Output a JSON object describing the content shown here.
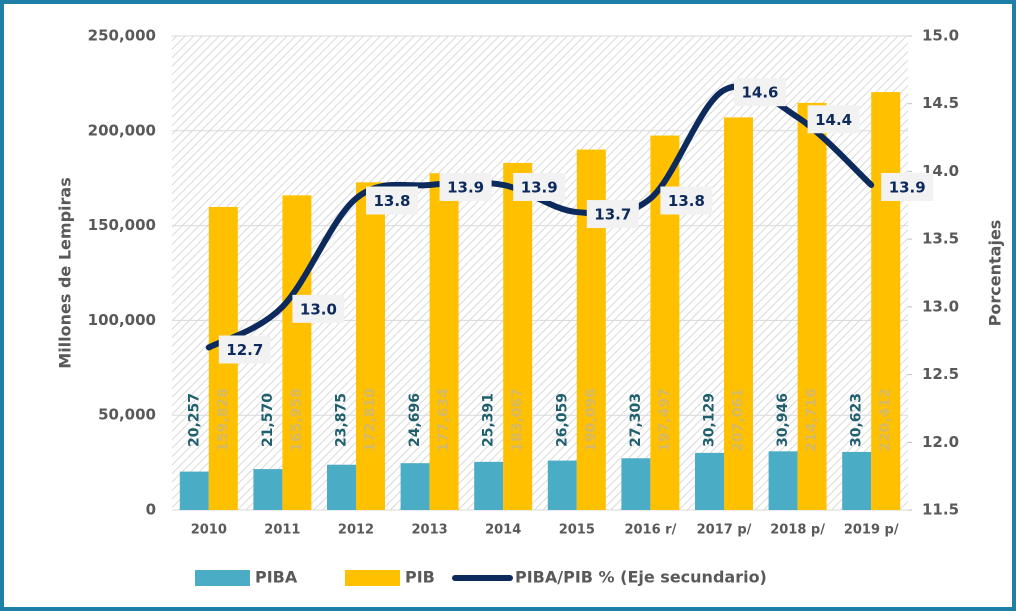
{
  "chart_data": {
    "type": "bar",
    "categories": [
      "2010",
      "2011",
      "2012",
      "2013",
      "2014",
      "2015",
      "2016 r/",
      "2017 p/",
      "2018 p/",
      "2019 p/"
    ],
    "series": [
      {
        "name": "PIBA",
        "color": "#4bacc6",
        "values": [
          20257,
          21570,
          23875,
          24696,
          25391,
          26059,
          27303,
          30129,
          30946,
          30623
        ],
        "value_labels": [
          "20,257",
          "21,570",
          "23,875",
          "24,696",
          "25,391",
          "26,059",
          "27,303",
          "30,129",
          "30,946",
          "30,623"
        ]
      },
      {
        "name": "PIB",
        "color": "#ffc000",
        "values": [
          159828,
          165958,
          172810,
          177634,
          183067,
          190096,
          197497,
          207061,
          214716,
          220412
        ],
        "value_labels": [
          "159,828",
          "165,958",
          "172,810",
          "177,634",
          "183,067",
          "190,096",
          "197,497",
          "207,061",
          "214,716",
          "220,412"
        ]
      },
      {
        "name": "PIBA/PIB % (Eje secundario)",
        "type": "line",
        "axis": "y2",
        "color": "#0d2a5c",
        "values": [
          12.7,
          13.0,
          13.8,
          13.9,
          13.9,
          13.7,
          13.8,
          14.6,
          14.4,
          13.9
        ],
        "value_labels": [
          "12.7",
          "13.0",
          "13.8",
          "13.9",
          "13.9",
          "13.7",
          "13.8",
          "14.6",
          "14.4",
          "13.9"
        ]
      }
    ],
    "y_label": "Millones de Lempiras",
    "y2_label": "Porcentajes",
    "ylim": [
      0,
      250000
    ],
    "yticks": [
      0,
      {
        "value": 50000,
        "label": "50,000"
      },
      {
        "value": 100000,
        "label": "100,000"
      },
      {
        "value": 150000,
        "label": "150,000"
      },
      {
        "value": 200000,
        "label": "200,000"
      },
      {
        "value": 250000,
        "label": "250,000"
      }
    ],
    "y2lim": [
      11.5,
      15
    ],
    "y2ticks": [
      11.5,
      {
        "value": 12,
        "label": "12.0"
      },
      12.5,
      {
        "value": 13,
        "label": "13.0"
      },
      13.5,
      {
        "value": 14,
        "label": "14.0"
      },
      14.5,
      {
        "value": 15,
        "label": "15.0"
      }
    ],
    "legend": "bottom"
  }
}
